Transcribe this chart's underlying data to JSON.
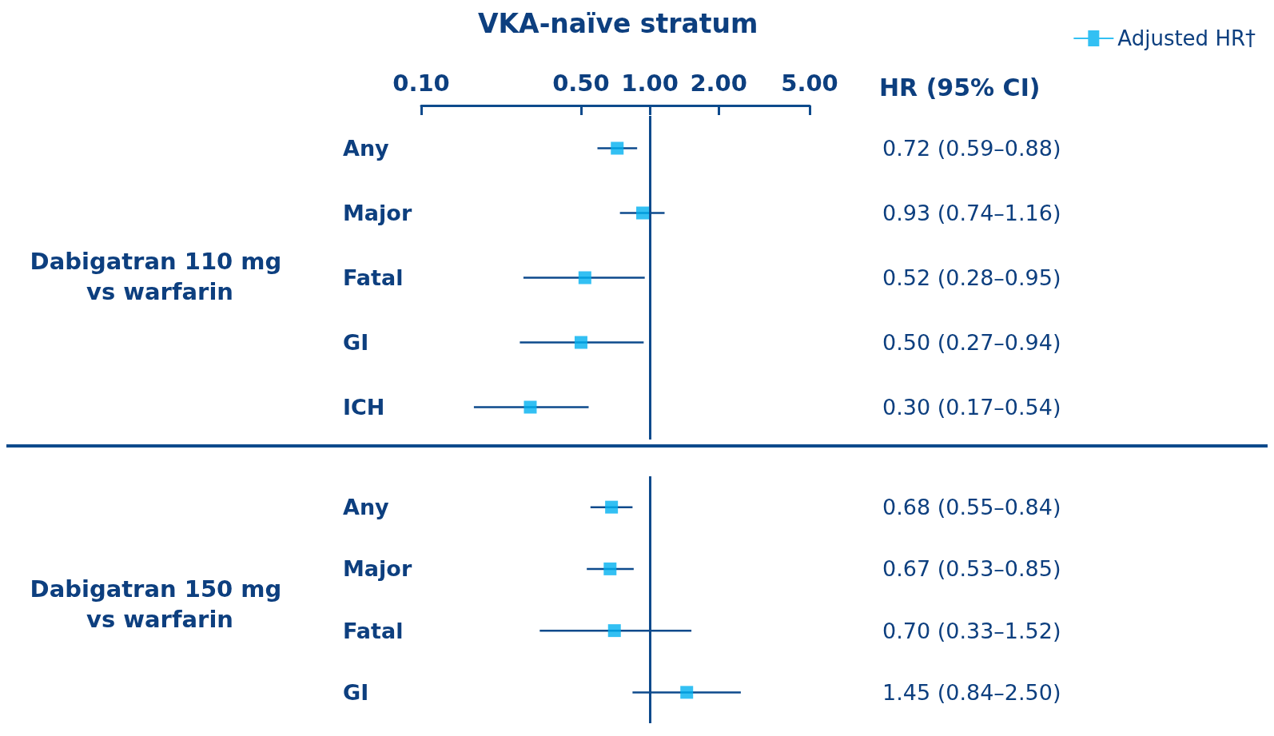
{
  "chart_data": [
    {
      "type": "scatter",
      "orientation": "horizontal",
      "title": "VKA-naïve stratum",
      "ylabel": "Dabigatran 110 mg vs warfarin",
      "annotations": [
        "HR (95% CI)"
      ],
      "categories": [
        "Any",
        "Major",
        "Fatal",
        "GI",
        "ICH"
      ],
      "log": "x",
      "xlim": [
        0.1,
        5
      ],
      "xticks": [
        {
          "value": 0.1,
          "label": "0.10"
        },
        {
          "value": 0.5,
          "label": "0.50"
        },
        {
          "value": 1,
          "label": "1.00"
        },
        {
          "value": 2,
          "label": "2.00"
        },
        {
          "value": 5,
          "label": "5.00"
        }
      ],
      "ref_lines": [
        {
          "axis": "x",
          "value": 1,
          "color": "#0d4a8c"
        }
      ],
      "legend": "top right",
      "marker": "square",
      "grid": false,
      "series": [
        {
          "name": "Adjusted HR†",
          "color": "#00b0f0",
          "values": [
            0.72,
            0.93,
            0.52,
            0.5,
            0.3
          ],
          "errors": [
            [
              0.59,
              0.88
            ],
            [
              0.74,
              1.16
            ],
            [
              0.28,
              0.95
            ],
            [
              0.27,
              0.94
            ],
            [
              0.17,
              0.54
            ]
          ],
          "value_labels": [
            "0.72 (0.59–0.88)",
            "0.93 (0.74–1.16)",
            "0.52 (0.28–0.95)",
            "0.50 (0.27–0.94)",
            "0.30 (0.17–0.54)"
          ]
        }
      ]
    },
    {
      "type": "scatter",
      "orientation": "horizontal",
      "ylabel": "Dabigatran 150 mg vs warfarin",
      "categories": [
        "Any",
        "Major",
        "Fatal",
        "GI"
      ],
      "log": "x",
      "xlim": [
        0.1,
        5
      ],
      "tick_labels": "y",
      "ref_lines": [
        {
          "axis": "x",
          "value": 1,
          "color": "#0d4a8c"
        }
      ],
      "marker": "square",
      "grid": false,
      "series": [
        {
          "color": "#00b0f0",
          "values": [
            0.68,
            0.67,
            0.7,
            1.45
          ],
          "errors": [
            [
              0.55,
              0.84
            ],
            [
              0.53,
              0.85
            ],
            [
              0.33,
              1.52
            ],
            [
              0.84,
              2.5
            ]
          ],
          "value_labels": [
            "0.68 (0.55–0.84)",
            "0.67 (0.53–0.85)",
            "0.70 (0.33–1.52)",
            "1.45 (0.84–2.50)"
          ]
        }
      ]
    }
  ]
}
